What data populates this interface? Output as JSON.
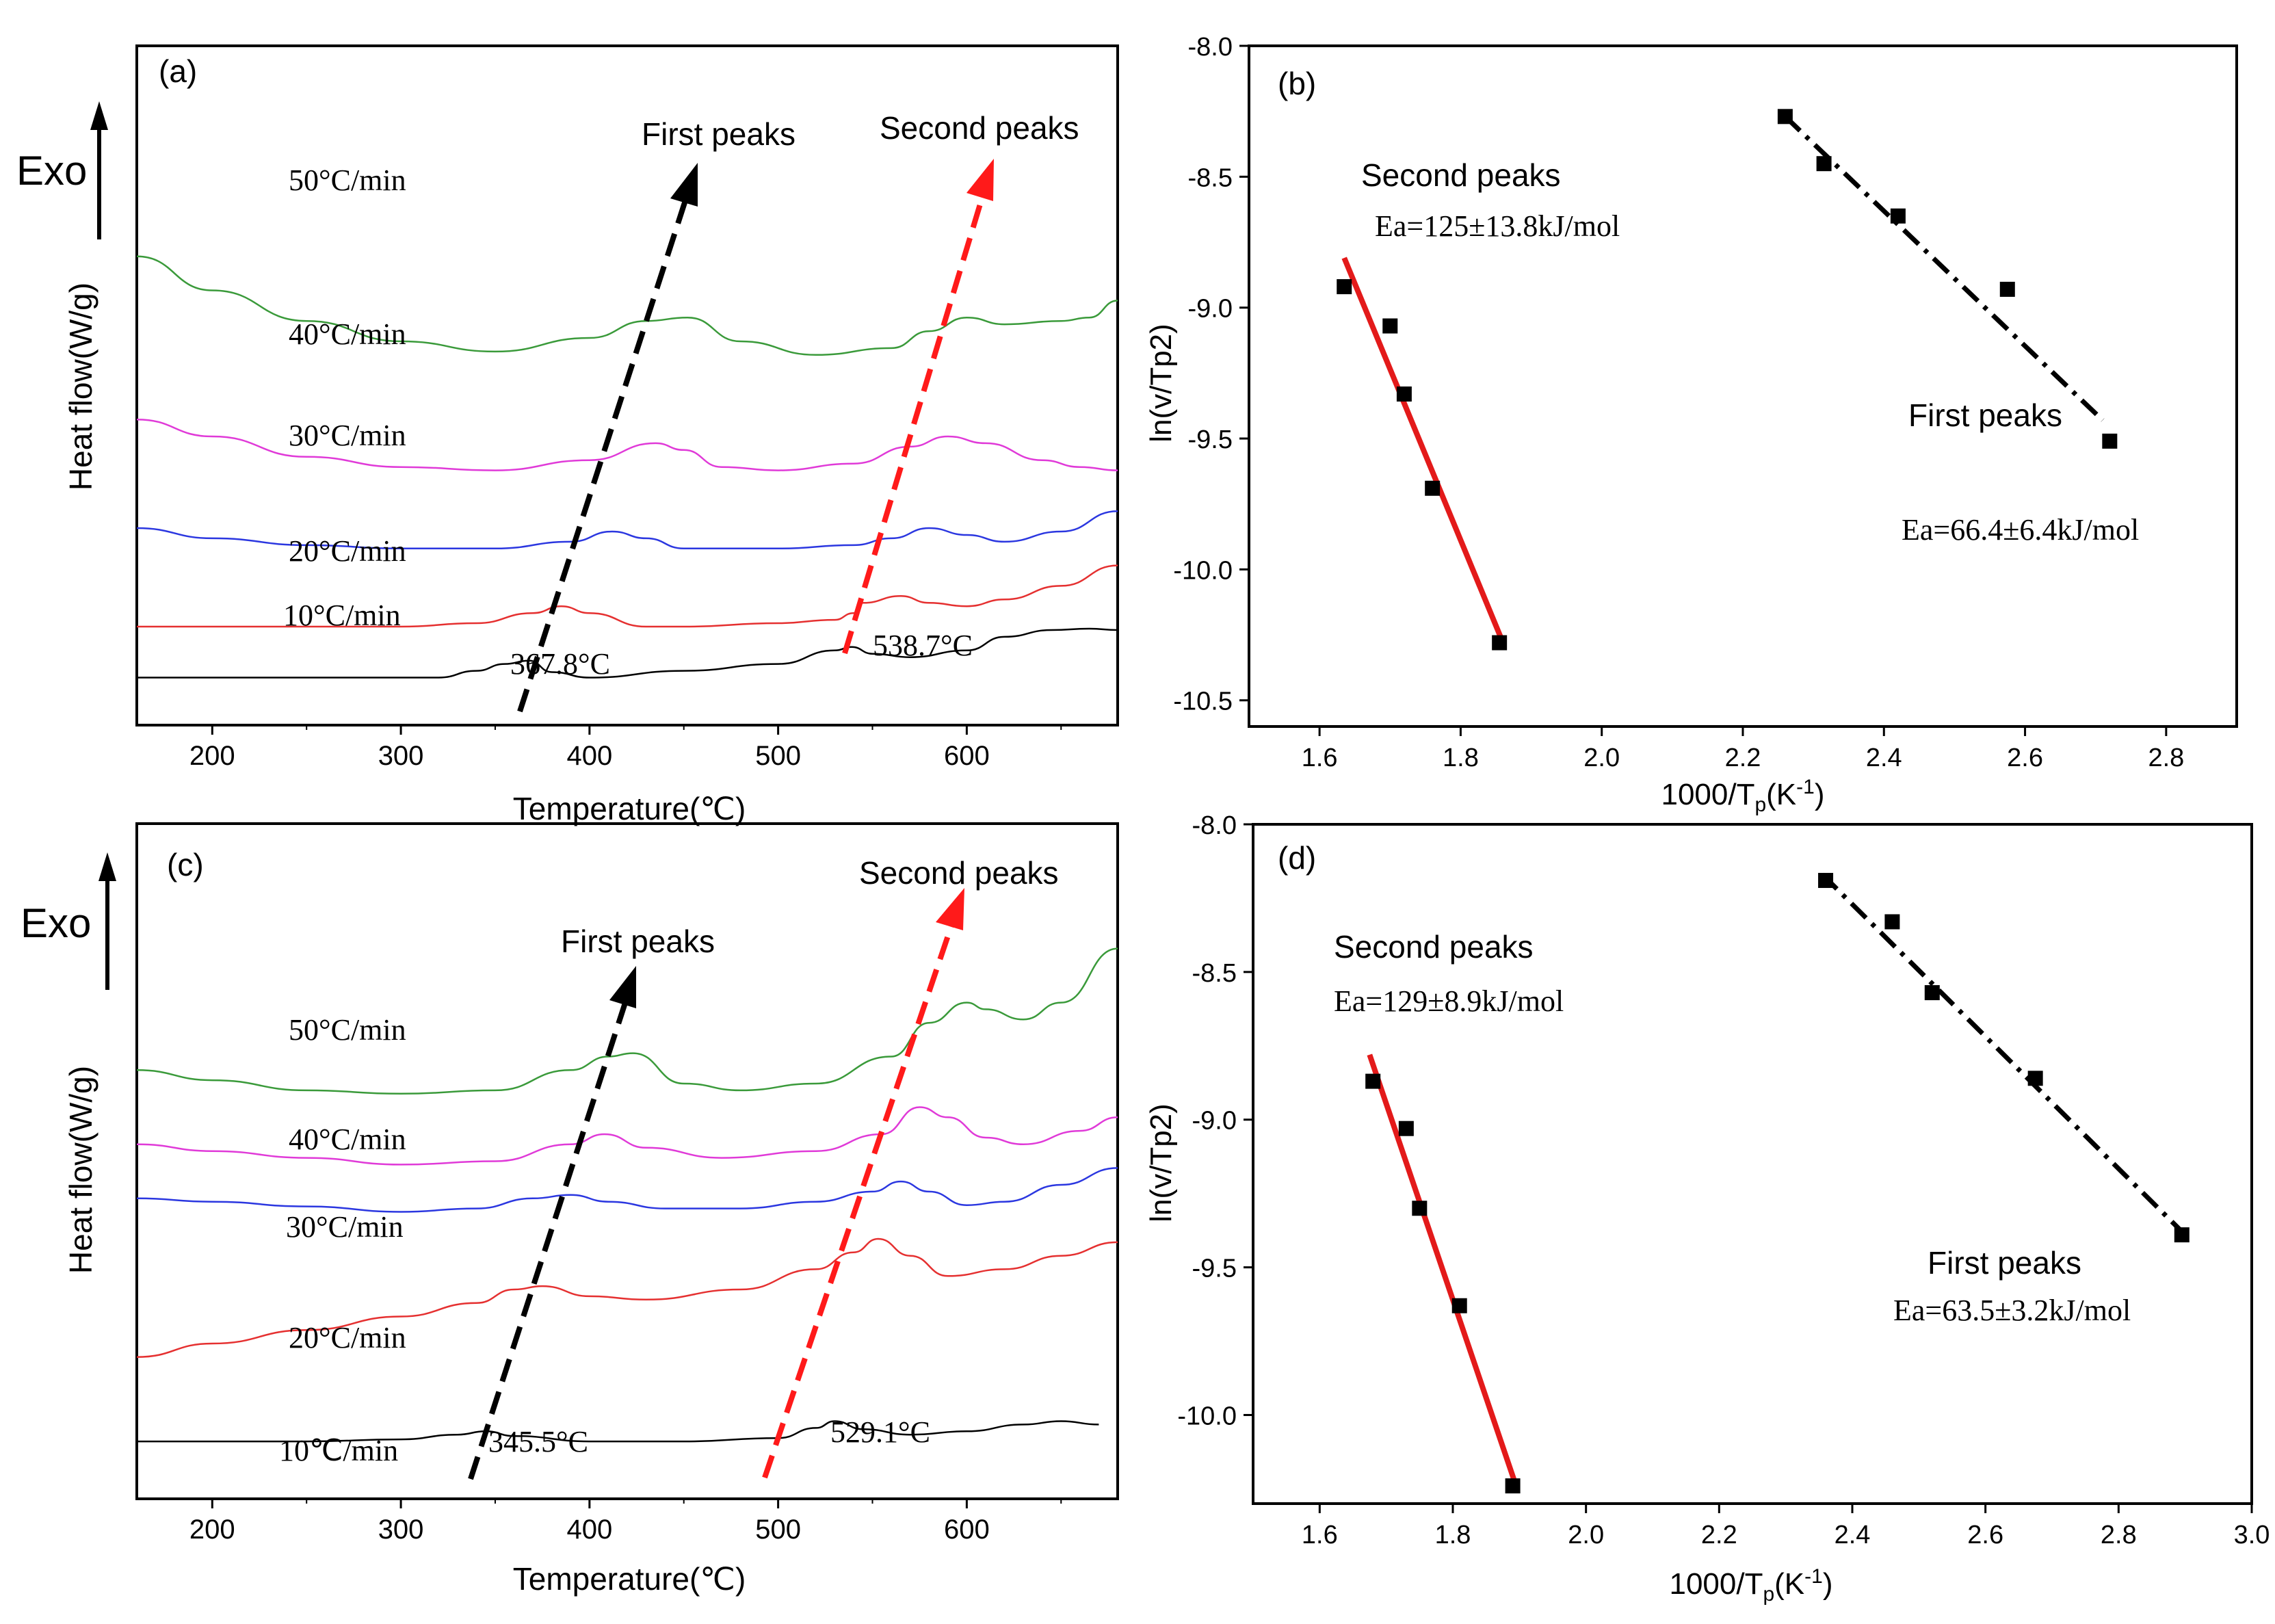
{
  "chart_data": [
    {
      "type": "line",
      "panel": "(a)",
      "exo_label": "Exo",
      "xlabel": "Temperature(℃)",
      "ylabel": "Heat flow(W/g)",
      "xlim": [
        160,
        680
      ],
      "xticks": [
        200,
        300,
        400,
        500,
        600
      ],
      "series": [
        {
          "name": "10°C/min",
          "color": "#000000",
          "base": 0.93,
          "x": [
            160,
            200,
            250,
            300,
            320,
            340,
            355,
            368,
            380,
            400,
            450,
            500,
            530,
            539,
            550,
            570,
            600,
            620,
            645,
            665,
            680
          ],
          "y": [
            0,
            0,
            0,
            0,
            0,
            0.01,
            0.02,
            0.025,
            0.008,
            0,
            0.01,
            0.02,
            0.04,
            0.045,
            0.035,
            0.03,
            0.04,
            0.06,
            0.07,
            0.072,
            0.07
          ]
        },
        {
          "name": "20°C/min",
          "color": "#e53030",
          "base": 0.855,
          "x": [
            160,
            200,
            250,
            300,
            340,
            370,
            385,
            400,
            430,
            450,
            500,
            530,
            540,
            545,
            565,
            580,
            600,
            620,
            650,
            680
          ],
          "y": [
            0,
            0,
            0,
            0,
            0.005,
            0.02,
            0.03,
            0.02,
            0,
            0,
            0.005,
            0.01,
            0.02,
            0.035,
            0.045,
            0.035,
            0.03,
            0.04,
            0.06,
            0.09
          ]
        },
        {
          "name": "30°C/min",
          "color": "#2b37e0",
          "base": 0.745,
          "x": [
            160,
            200,
            250,
            300,
            350,
            390,
            412,
            430,
            450,
            500,
            540,
            560,
            580,
            600,
            620,
            650,
            680
          ],
          "y": [
            0.035,
            0.02,
            0.01,
            0.005,
            0.005,
            0.015,
            0.03,
            0.02,
            0.005,
            0.005,
            0.01,
            0.02,
            0.035,
            0.025,
            0.015,
            0.03,
            0.06
          ]
        },
        {
          "name": "40°C/min",
          "color": "#e03ad8",
          "base": 0.63,
          "x": [
            160,
            200,
            250,
            300,
            350,
            400,
            435,
            450,
            470,
            500,
            540,
            570,
            590,
            610,
            640,
            660,
            680
          ],
          "y": [
            0.08,
            0.055,
            0.025,
            0.01,
            0.005,
            0.02,
            0.045,
            0.035,
            0.01,
            0.005,
            0.015,
            0.04,
            0.055,
            0.045,
            0.02,
            0.01,
            0.005
          ]
        },
        {
          "name": "50°C/min",
          "color": "#3a9a3a",
          "base": 0.455,
          "x": [
            160,
            200,
            250,
            300,
            350,
            400,
            430,
            452,
            480,
            520,
            560,
            580,
            600,
            620,
            650,
            665,
            680
          ],
          "y": [
            0.145,
            0.095,
            0.05,
            0.02,
            0.005,
            0.025,
            0.05,
            0.055,
            0.02,
            0.0,
            0.01,
            0.035,
            0.055,
            0.045,
            0.05,
            0.055,
            0.08
          ]
        }
      ],
      "rate_labels": [
        "50°C/min",
        "40°C/min",
        "30°C/min",
        "20°C/min",
        "10°C/min"
      ],
      "peak_annotations": [
        "367.8°C",
        "538.7°C"
      ],
      "arrow_labels": [
        "First peaks",
        "Second peaks"
      ]
    },
    {
      "type": "scatter",
      "panel": "(b)",
      "xlabel": "1000/T_p(K⁻¹)",
      "ylabel": "ln(v/Tp2)",
      "xlim": [
        1.5,
        2.9
      ],
      "ylim": [
        -10.6,
        -8.0
      ],
      "xticks": [
        1.6,
        1.8,
        2.0,
        2.2,
        2.4,
        2.6,
        2.8
      ],
      "yticks": [
        -8.0,
        -8.5,
        -9.0,
        -9.5,
        -10.0,
        -10.5
      ],
      "series": [
        {
          "name": "Second peaks",
          "color": "#e31a1a",
          "x": [
            1.635,
            1.7,
            1.72,
            1.76,
            1.855
          ],
          "y": [
            -8.92,
            -9.07,
            -9.33,
            -9.69,
            -10.28
          ],
          "fit": [
            [
              1.635,
              -8.81
            ],
            [
              1.86,
              -10.28
            ]
          ],
          "dash": "solid"
        },
        {
          "name": "First peaks",
          "color": "#000000",
          "x": [
            2.26,
            2.315,
            2.42,
            2.575,
            2.72
          ],
          "y": [
            -8.27,
            -8.45,
            -8.65,
            -8.93,
            -9.51
          ],
          "fit": [
            [
              2.26,
              -8.27
            ],
            [
              2.71,
              -9.43
            ]
          ],
          "dash": "dashdot"
        }
      ],
      "ea_labels": [
        "Ea=125±13.8kJ/mol",
        "Ea=66.4±6.4kJ/mol"
      ]
    },
    {
      "type": "line",
      "panel": "(c)",
      "exo_label": "Exo",
      "xlabel": "Temperature(℃)",
      "ylabel": "Heat flow(W/g)",
      "xlim": [
        160,
        680
      ],
      "xticks": [
        200,
        300,
        400,
        500,
        600
      ],
      "series": [
        {
          "name": "10℃/min",
          "color": "#000000",
          "base": 0.915,
          "x": [
            160,
            200,
            250,
            300,
            330,
            345,
            360,
            400,
            450,
            500,
            520,
            530,
            545,
            570,
            600,
            630,
            650,
            670
          ],
          "y": [
            0,
            0,
            0,
            0.003,
            0.01,
            0.015,
            0.008,
            0,
            0,
            0.005,
            0.02,
            0.03,
            0.018,
            0.01,
            0.015,
            0.025,
            0.03,
            0.025
          ]
        },
        {
          "name": "20°C/min",
          "color": "#e53030",
          "base": 0.79,
          "x": [
            160,
            200,
            250,
            300,
            340,
            360,
            375,
            400,
            430,
            480,
            520,
            540,
            553,
            570,
            590,
            620,
            650,
            680
          ],
          "y": [
            0,
            0.02,
            0.04,
            0.06,
            0.08,
            0.1,
            0.105,
            0.09,
            0.085,
            0.1,
            0.13,
            0.155,
            0.175,
            0.15,
            0.12,
            0.13,
            0.15,
            0.17
          ]
        },
        {
          "name": "30°C/min",
          "color": "#2b37e0",
          "base": 0.575,
          "x": [
            160,
            200,
            250,
            300,
            340,
            370,
            390,
            410,
            440,
            480,
            520,
            550,
            565,
            580,
            600,
            620,
            650,
            680
          ],
          "y": [
            0.02,
            0.015,
            0.008,
            0,
            0.005,
            0.02,
            0.025,
            0.015,
            0.005,
            0.005,
            0.015,
            0.03,
            0.045,
            0.03,
            0.01,
            0.015,
            0.04,
            0.065
          ]
        },
        {
          "name": "40°C/min",
          "color": "#e03ad8",
          "base": 0.505,
          "x": [
            160,
            200,
            250,
            300,
            350,
            390,
            408,
            430,
            470,
            520,
            555,
            575,
            590,
            610,
            630,
            660,
            680
          ],
          "y": [
            0.03,
            0.02,
            0.01,
            0,
            0.005,
            0.03,
            0.045,
            0.025,
            0.01,
            0.02,
            0.045,
            0.085,
            0.07,
            0.04,
            0.03,
            0.05,
            0.07
          ]
        },
        {
          "name": "50°C/min",
          "color": "#3a9a3a",
          "base": 0.405,
          "x": [
            160,
            200,
            250,
            300,
            350,
            390,
            410,
            423,
            450,
            480,
            520,
            560,
            580,
            600,
            610,
            630,
            650,
            680
          ],
          "y": [
            0.04,
            0.025,
            0.01,
            0.005,
            0.01,
            0.04,
            0.06,
            0.065,
            0.02,
            0.01,
            0.02,
            0.06,
            0.11,
            0.14,
            0.13,
            0.115,
            0.14,
            0.22
          ]
        }
      ],
      "rate_labels": [
        "50°C/min",
        "40°C/min",
        "30°C/min",
        "20°C/min",
        "10℃/min"
      ],
      "peak_annotations": [
        "345.5°C",
        "529.1°C"
      ],
      "arrow_labels": [
        "First peaks",
        "Second peaks"
      ]
    },
    {
      "type": "scatter",
      "panel": "(d)",
      "xlabel": "1000/T_p(K⁻¹)",
      "ylabel": "ln(v/Tp2)",
      "xlim": [
        1.5,
        3.0
      ],
      "ylim": [
        -10.3,
        -8.0
      ],
      "xticks": [
        1.6,
        1.8,
        2.0,
        2.2,
        2.4,
        2.6,
        2.8,
        3.0
      ],
      "yticks": [
        -8.0,
        -8.5,
        -9.0,
        -9.5,
        -10.0
      ],
      "series": [
        {
          "name": "Second peaks",
          "color": "#e31a1a",
          "x": [
            1.68,
            1.73,
            1.75,
            1.81,
            1.89
          ],
          "y": [
            -8.87,
            -9.03,
            -9.3,
            -9.63,
            -10.24
          ],
          "fit": [
            [
              1.675,
              -8.78
            ],
            [
              1.895,
              -10.24
            ]
          ],
          "dash": "solid"
        },
        {
          "name": "First peaks",
          "color": "#000000",
          "x": [
            2.36,
            2.46,
            2.52,
            2.675,
            2.895
          ],
          "y": [
            -8.19,
            -8.33,
            -8.57,
            -8.86,
            -9.39
          ],
          "fit": [
            [
              2.355,
              -8.17
            ],
            [
              2.9,
              -9.39
            ]
          ],
          "dash": "dashdot"
        }
      ],
      "ea_labels": [
        "Ea=129±8.9kJ/mol",
        "Ea=63.5±3.2kJ/mol"
      ]
    }
  ]
}
